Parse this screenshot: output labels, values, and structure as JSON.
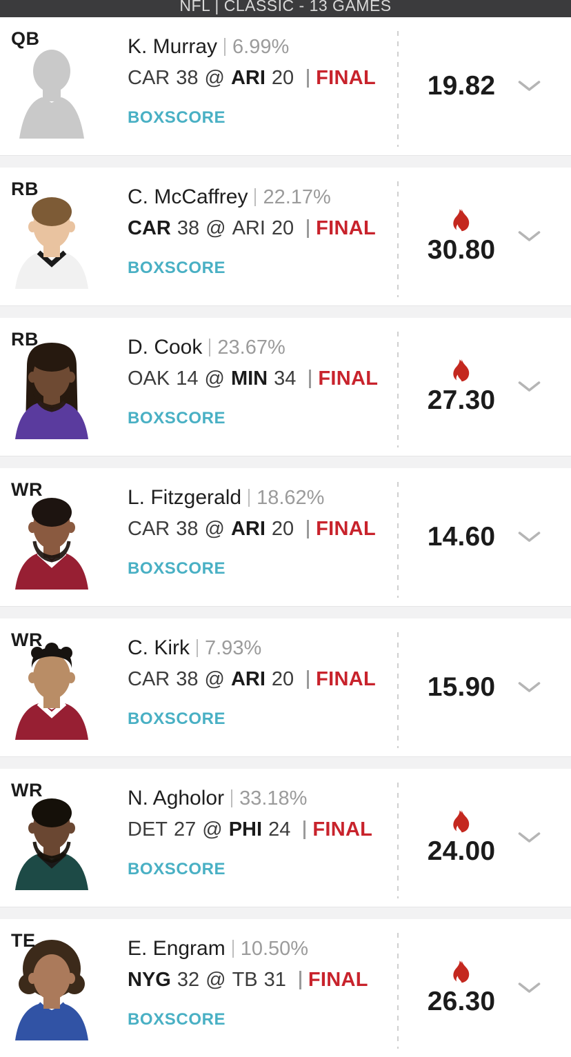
{
  "header": {
    "title": "NFL | CLASSIC - 13 GAMES"
  },
  "labels": {
    "boxscore": "BOXSCORE",
    "at_symbol": "@"
  },
  "colors": {
    "header_bg": "#3b3b3d",
    "boxscore_teal": "#49b0c4",
    "final_red": "#c8232c",
    "fire_red": "#c4281f",
    "separator_gray": "#f2f2f3",
    "chevron_gray": "#b5b5b5",
    "ownership_gray": "#9b9b9b",
    "score_black": "#1b1b1b"
  },
  "players": [
    {
      "position": "QB",
      "name": "K. Murray",
      "ownership": "6.99%",
      "game": {
        "away": "CAR",
        "away_score": "38",
        "home": "ARI",
        "home_score": "20",
        "bold": "home",
        "status": "FINAL"
      },
      "points": "19.82",
      "hot": false,
      "avatar": {
        "type": "silhouette",
        "color": "#c9c9c9"
      }
    },
    {
      "position": "RB",
      "name": "C. McCaffrey",
      "ownership": "22.17%",
      "game": {
        "away": "CAR",
        "away_score": "38",
        "home": "ARI",
        "home_score": "20",
        "bold": "away",
        "status": "FINAL"
      },
      "points": "30.80",
      "hot": true,
      "avatar": {
        "type": "photo",
        "skin": "#e9c3a0",
        "hair": "#7d5b36",
        "jersey": "#f1f1f1",
        "collar": "#1a1a1a",
        "hairstyle": "short",
        "beard": false
      }
    },
    {
      "position": "RB",
      "name": "D. Cook",
      "ownership": "23.67%",
      "game": {
        "away": "OAK",
        "away_score": "14",
        "home": "MIN",
        "home_score": "34",
        "bold": "home",
        "status": "FINAL"
      },
      "points": "27.30",
      "hot": true,
      "avatar": {
        "type": "photo",
        "skin": "#6e4a33",
        "hair": "#26190f",
        "jersey": "#5a3b9e",
        "collar": "#5a3b9e",
        "hairstyle": "dreads",
        "beard": true
      }
    },
    {
      "position": "WR",
      "name": "L. Fitzgerald",
      "ownership": "18.62%",
      "game": {
        "away": "CAR",
        "away_score": "38",
        "home": "ARI",
        "home_score": "20",
        "bold": "home",
        "status": "FINAL"
      },
      "points": "14.60",
      "hot": false,
      "avatar": {
        "type": "photo",
        "skin": "#8a5a40",
        "hair": "#1d1410",
        "jersey": "#971f33",
        "collar": "#ffffff",
        "hairstyle": "short",
        "beard": true
      }
    },
    {
      "position": "WR",
      "name": "C. Kirk",
      "ownership": "7.93%",
      "game": {
        "away": "CAR",
        "away_score": "38",
        "home": "ARI",
        "home_score": "20",
        "bold": "home",
        "status": "FINAL"
      },
      "points": "15.90",
      "hot": false,
      "avatar": {
        "type": "photo",
        "skin": "#b98d66",
        "hair": "#171310",
        "jersey": "#971f33",
        "collar": "#ffffff",
        "hairstyle": "curlytop",
        "beard": false
      }
    },
    {
      "position": "WR",
      "name": "N. Agholor",
      "ownership": "33.18%",
      "game": {
        "away": "DET",
        "away_score": "27",
        "home": "PHI",
        "home_score": "24",
        "bold": "home",
        "status": "FINAL"
      },
      "points": "24.00",
      "hot": true,
      "avatar": {
        "type": "photo",
        "skin": "#6a4732",
        "hair": "#151009",
        "jersey": "#1d4a46",
        "collar": "#1a1a1a",
        "hairstyle": "short",
        "beard": true
      }
    },
    {
      "position": "TE",
      "name": "E. Engram",
      "ownership": "10.50%",
      "game": {
        "away": "NYG",
        "away_score": "32",
        "home": "TB",
        "home_score": "31",
        "bold": "away",
        "status": "FINAL"
      },
      "points": "26.30",
      "hot": true,
      "avatar": {
        "type": "photo",
        "skin": "#ab7a5b",
        "hair": "#3c2a1a",
        "jersey": "#3153a5",
        "collar": "#3153a5",
        "hairstyle": "afro",
        "beard": false
      }
    }
  ]
}
